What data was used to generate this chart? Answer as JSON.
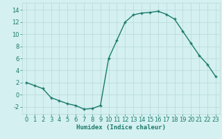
{
  "x": [
    0,
    1,
    2,
    3,
    4,
    5,
    6,
    7,
    8,
    9,
    10,
    11,
    12,
    13,
    14,
    15,
    16,
    17,
    18,
    19,
    20,
    21,
    22,
    23
  ],
  "y": [
    2,
    1.5,
    1,
    -0.5,
    -1,
    -1.5,
    -1.8,
    -2.4,
    -2.3,
    -1.8,
    6,
    9,
    12,
    13.2,
    13.5,
    13.6,
    13.8,
    13.3,
    12.5,
    10.5,
    8.5,
    6.5,
    5,
    3
  ],
  "line_color": "#1a7a6a",
  "marker_color": "#1a7a6a",
  "bg_color": "#d4f0f0",
  "grid_color": "#b8d8d8",
  "xlabel": "Humidex (Indice chaleur)",
  "xlim": [
    -0.5,
    23.5
  ],
  "ylim": [
    -3.2,
    15.2
  ],
  "yticks": [
    -2,
    0,
    2,
    4,
    6,
    8,
    10,
    12,
    14
  ],
  "xticks": [
    0,
    1,
    2,
    3,
    4,
    5,
    6,
    7,
    8,
    9,
    10,
    11,
    12,
    13,
    14,
    15,
    16,
    17,
    18,
    19,
    20,
    21,
    22,
    23
  ],
  "xlabel_fontsize": 6.5,
  "tick_fontsize": 6.0
}
